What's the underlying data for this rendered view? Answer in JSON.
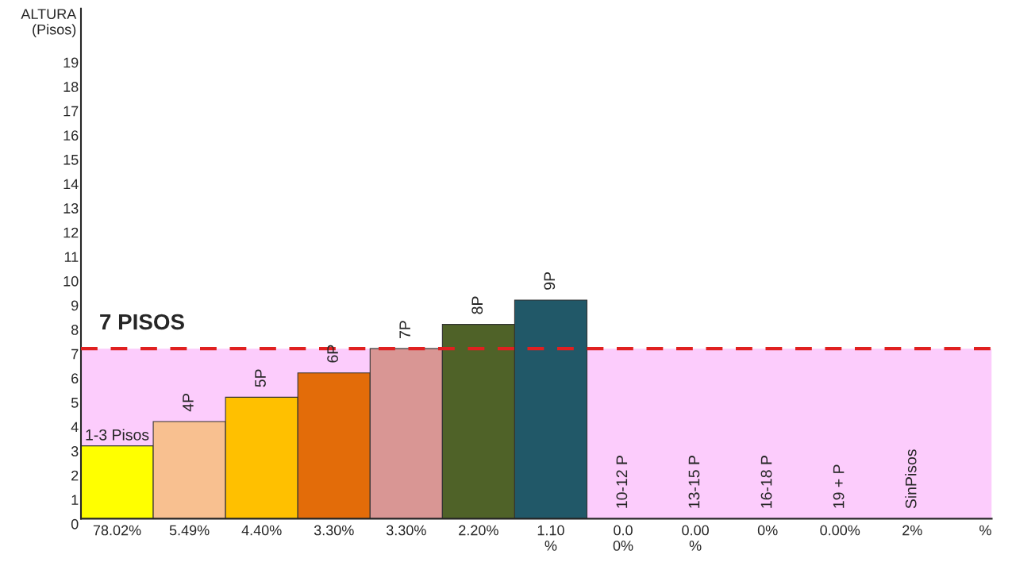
{
  "chart_data": {
    "type": "bar",
    "ylabel": "ALTURA\n(Pisos)",
    "categories": [
      "1-3 Pisos",
      "4P",
      "5P",
      "6P",
      "7P",
      "8P",
      "9P",
      "10-12 P",
      "13-15 P",
      "16-18 P",
      "19 + P",
      "SinPisos"
    ],
    "values": [
      3,
      4,
      5,
      6,
      7,
      8,
      9,
      0,
      0,
      0,
      0,
      0
    ],
    "colors": [
      "#ffff00",
      "#f8c090",
      "#ffc000",
      "#e36c09",
      "#d99694",
      "#4f6228",
      "#215868",
      "#ffffff",
      "#ffffff",
      "#ffffff",
      "#ffffff",
      "#ffffff"
    ],
    "ylim": [
      0,
      21
    ],
    "yticks": [
      0,
      1,
      2,
      3,
      4,
      5,
      6,
      7,
      8,
      9,
      10,
      11,
      12,
      13,
      14,
      15,
      16,
      17,
      18,
      19
    ],
    "ref_lines": [
      {
        "axis": "y",
        "value": 7,
        "label": "7 PISOS",
        "color": "#e02020",
        "line_style": "dashed"
      }
    ],
    "bands": [
      {
        "axis": "y",
        "from": 0,
        "to": 7,
        "color": "#fcccfc"
      }
    ],
    "annotations": [
      "78.02%",
      "5.49%",
      "4.40%",
      "3.30%",
      "3.30%",
      "2.20%",
      "1.10\n%",
      "0.0\n0%",
      "0.00\n%",
      "0%",
      "0.00%",
      "2%",
      "%"
    ],
    "grid": false,
    "legend": false
  }
}
